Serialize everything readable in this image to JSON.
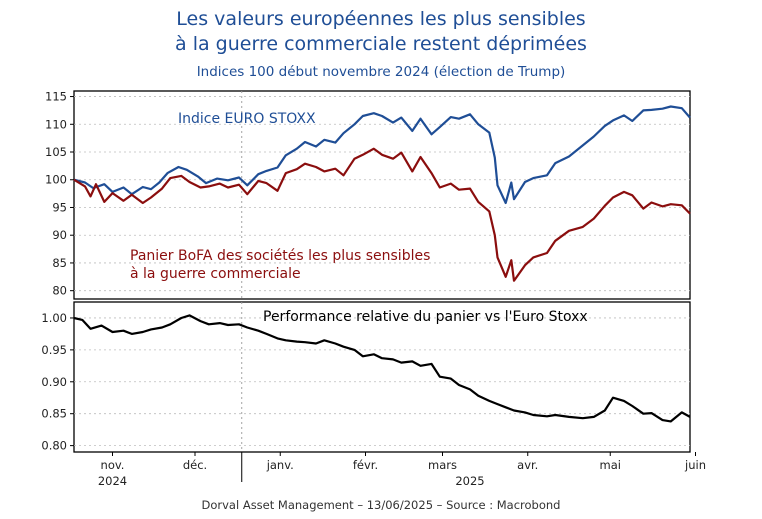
{
  "title_line1": "Les valeurs européennes les plus sensibles",
  "title_line2": "à la guerre commerciale restent déprimées",
  "subtitle": "Indices 100 début novembre 2024 (élection de Trump)",
  "footer": "Dorval Asset Management – 13/06/2025  –   Source : Macrobond",
  "colors": {
    "euro_stoxx": "#1f4e96",
    "basket": "#8b0e0e",
    "relative": "#000000",
    "title": "#1f4e96"
  },
  "chart_data": [
    {
      "type": "line",
      "ylim": [
        78.5,
        116
      ],
      "yticks": [
        80,
        85,
        90,
        95,
        100,
        105,
        110,
        115
      ],
      "x_domain": [
        "2024-11-01",
        "2025-06-13"
      ],
      "series": [
        {
          "name": "Indice EURO STOXX",
          "points": [
            [
              "2024-11-01",
              100
            ],
            [
              "2024-11-05",
              99.5
            ],
            [
              "2024-11-08",
              98.5
            ],
            [
              "2024-11-12",
              99.2
            ],
            [
              "2024-11-15",
              97.8
            ],
            [
              "2024-11-19",
              98.6
            ],
            [
              "2024-11-22",
              97.4
            ],
            [
              "2024-11-26",
              98.7
            ],
            [
              "2024-11-29",
              98.3
            ],
            [
              "2024-12-02",
              99.5
            ],
            [
              "2024-12-05",
              101.2
            ],
            [
              "2024-12-09",
              102.3
            ],
            [
              "2024-12-12",
              101.8
            ],
            [
              "2024-12-16",
              100.6
            ],
            [
              "2024-12-19",
              99.4
            ],
            [
              "2024-12-23",
              100.2
            ],
            [
              "2024-12-27",
              99.9
            ],
            [
              "2024-12-31",
              100.4
            ],
            [
              "2025-01-03",
              99.0
            ],
            [
              "2025-01-07",
              101.0
            ],
            [
              "2025-01-10",
              101.6
            ],
            [
              "2025-01-14",
              102.2
            ],
            [
              "2025-01-17",
              104.4
            ],
            [
              "2025-01-21",
              105.6
            ],
            [
              "2025-01-24",
              106.8
            ],
            [
              "2025-01-28",
              106.0
            ],
            [
              "2025-01-31",
              107.2
            ],
            [
              "2025-02-04",
              106.7
            ],
            [
              "2025-02-07",
              108.4
            ],
            [
              "2025-02-11",
              110.0
            ],
            [
              "2025-02-14",
              111.5
            ],
            [
              "2025-02-18",
              112.0
            ],
            [
              "2025-02-21",
              111.5
            ],
            [
              "2025-02-25",
              110.3
            ],
            [
              "2025-02-28",
              111.2
            ],
            [
              "2025-03-04",
              108.8
            ],
            [
              "2025-03-07",
              111.0
            ],
            [
              "2025-03-11",
              108.2
            ],
            [
              "2025-03-14",
              109.5
            ],
            [
              "2025-03-18",
              111.3
            ],
            [
              "2025-03-21",
              111.0
            ],
            [
              "2025-03-25",
              111.8
            ],
            [
              "2025-03-28",
              110.0
            ],
            [
              "2025-04-01",
              108.5
            ],
            [
              "2025-04-03",
              104.0
            ],
            [
              "2025-04-04",
              99.0
            ],
            [
              "2025-04-07",
              95.8
            ],
            [
              "2025-04-09",
              99.5
            ],
            [
              "2025-04-10",
              96.5
            ],
            [
              "2025-04-14",
              99.6
            ],
            [
              "2025-04-17",
              100.3
            ],
            [
              "2025-04-22",
              100.8
            ],
            [
              "2025-04-25",
              103.0
            ],
            [
              "2025-04-30",
              104.2
            ],
            [
              "2025-05-05",
              106.2
            ],
            [
              "2025-05-09",
              107.8
            ],
            [
              "2025-05-13",
              109.7
            ],
            [
              "2025-05-16",
              110.7
            ],
            [
              "2025-05-20",
              111.6
            ],
            [
              "2025-05-23",
              110.6
            ],
            [
              "2025-05-27",
              112.5
            ],
            [
              "2025-05-30",
              112.6
            ],
            [
              "2025-06-03",
              112.8
            ],
            [
              "2025-06-06",
              113.2
            ],
            [
              "2025-06-10",
              112.9
            ],
            [
              "2025-06-13",
              111.2
            ]
          ]
        },
        {
          "name": "Panier BoFA des sociétés les plus sensibles à la guerre commerciale",
          "points": [
            [
              "2024-11-01",
              100
            ],
            [
              "2024-11-05",
              98.8
            ],
            [
              "2024-11-07",
              97.0
            ],
            [
              "2024-11-09",
              99.2
            ],
            [
              "2024-11-12",
              96.0
            ],
            [
              "2024-11-15",
              97.6
            ],
            [
              "2024-11-19",
              96.2
            ],
            [
              "2024-11-22",
              97.3
            ],
            [
              "2024-11-26",
              95.8
            ],
            [
              "2024-11-29",
              96.8
            ],
            [
              "2024-12-03",
              98.4
            ],
            [
              "2024-12-06",
              100.3
            ],
            [
              "2024-12-10",
              100.7
            ],
            [
              "2024-12-13",
              99.6
            ],
            [
              "2024-12-17",
              98.6
            ],
            [
              "2024-12-20",
              98.8
            ],
            [
              "2024-12-24",
              99.3
            ],
            [
              "2024-12-27",
              98.6
            ],
            [
              "2024-12-31",
              99.1
            ],
            [
              "2025-01-03",
              97.4
            ],
            [
              "2025-01-07",
              99.8
            ],
            [
              "2025-01-10",
              99.4
            ],
            [
              "2025-01-14",
              98.0
            ],
            [
              "2025-01-17",
              101.2
            ],
            [
              "2025-01-21",
              101.9
            ],
            [
              "2025-01-24",
              102.9
            ],
            [
              "2025-01-28",
              102.3
            ],
            [
              "2025-01-31",
              101.5
            ],
            [
              "2025-02-04",
              102.0
            ],
            [
              "2025-02-07",
              100.8
            ],
            [
              "2025-02-11",
              103.8
            ],
            [
              "2025-02-14",
              104.5
            ],
            [
              "2025-02-18",
              105.6
            ],
            [
              "2025-02-21",
              104.5
            ],
            [
              "2025-02-25",
              103.8
            ],
            [
              "2025-02-28",
              104.9
            ],
            [
              "2025-03-04",
              101.5
            ],
            [
              "2025-03-07",
              104.1
            ],
            [
              "2025-03-11",
              101.2
            ],
            [
              "2025-03-14",
              98.6
            ],
            [
              "2025-03-18",
              99.3
            ],
            [
              "2025-03-21",
              98.2
            ],
            [
              "2025-03-25",
              98.4
            ],
            [
              "2025-03-28",
              96.0
            ],
            [
              "2025-04-01",
              94.3
            ],
            [
              "2025-04-03",
              90.0
            ],
            [
              "2025-04-04",
              86.0
            ],
            [
              "2025-04-07",
              82.5
            ],
            [
              "2025-04-09",
              85.5
            ],
            [
              "2025-04-10",
              81.8
            ],
            [
              "2025-04-14",
              84.6
            ],
            [
              "2025-04-17",
              86.0
            ],
            [
              "2025-04-22",
              86.8
            ],
            [
              "2025-04-25",
              89.0
            ],
            [
              "2025-04-30",
              90.8
            ],
            [
              "2025-05-05",
              91.5
            ],
            [
              "2025-05-09",
              93.0
            ],
            [
              "2025-05-13",
              95.3
            ],
            [
              "2025-05-16",
              96.8
            ],
            [
              "2025-05-20",
              97.8
            ],
            [
              "2025-05-23",
              97.2
            ],
            [
              "2025-05-27",
              94.8
            ],
            [
              "2025-05-30",
              95.9
            ],
            [
              "2025-06-03",
              95.2
            ],
            [
              "2025-06-06",
              95.6
            ],
            [
              "2025-06-10",
              95.4
            ],
            [
              "2025-06-13",
              93.9
            ]
          ]
        }
      ],
      "annotations": [
        {
          "text": "Indice EURO STOXX",
          "series": 0
        },
        {
          "text": "Panier BoFA des sociétés les plus sensibles",
          "series": 1
        },
        {
          "text": "à la guerre commerciale",
          "series": 1
        }
      ]
    },
    {
      "type": "line",
      "ylim": [
        0.79,
        1.025
      ],
      "yticks": [
        0.8,
        0.85,
        0.9,
        0.95,
        1.0
      ],
      "ytick_labels": [
        "0.80",
        "0.85",
        "0.90",
        "0.95",
        "1.00"
      ],
      "x_domain": [
        "2024-11-01",
        "2025-06-13"
      ],
      "series": [
        {
          "name": "Performance relative du panier vs l'Euro Stoxx",
          "points": [
            [
              "2024-11-01",
              1.0
            ],
            [
              "2024-11-04",
              0.997
            ],
            [
              "2024-11-07",
              0.983
            ],
            [
              "2024-11-11",
              0.988
            ],
            [
              "2024-11-15",
              0.978
            ],
            [
              "2024-11-19",
              0.98
            ],
            [
              "2024-11-22",
              0.975
            ],
            [
              "2024-11-26",
              0.978
            ],
            [
              "2024-11-29",
              0.982
            ],
            [
              "2024-12-03",
              0.985
            ],
            [
              "2024-12-06",
              0.99
            ],
            [
              "2024-12-10",
              1.0
            ],
            [
              "2024-12-13",
              1.004
            ],
            [
              "2024-12-17",
              0.995
            ],
            [
              "2024-12-20",
              0.99
            ],
            [
              "2024-12-24",
              0.992
            ],
            [
              "2024-12-27",
              0.989
            ],
            [
              "2024-12-31",
              0.99
            ],
            [
              "2025-01-03",
              0.985
            ],
            [
              "2025-01-07",
              0.98
            ],
            [
              "2025-01-10",
              0.975
            ],
            [
              "2025-01-14",
              0.968
            ],
            [
              "2025-01-17",
              0.965
            ],
            [
              "2025-01-21",
              0.963
            ],
            [
              "2025-01-24",
              0.962
            ],
            [
              "2025-01-28",
              0.96
            ],
            [
              "2025-01-31",
              0.965
            ],
            [
              "2025-02-04",
              0.96
            ],
            [
              "2025-02-07",
              0.955
            ],
            [
              "2025-02-11",
              0.95
            ],
            [
              "2025-02-14",
              0.94
            ],
            [
              "2025-02-18",
              0.943
            ],
            [
              "2025-02-21",
              0.937
            ],
            [
              "2025-02-25",
              0.935
            ],
            [
              "2025-02-28",
              0.93
            ],
            [
              "2025-03-04",
              0.932
            ],
            [
              "2025-03-07",
              0.925
            ],
            [
              "2025-03-11",
              0.928
            ],
            [
              "2025-03-14",
              0.908
            ],
            [
              "2025-03-18",
              0.905
            ],
            [
              "2025-03-21",
              0.895
            ],
            [
              "2025-03-25",
              0.888
            ],
            [
              "2025-03-28",
              0.878
            ],
            [
              "2025-04-01",
              0.87
            ],
            [
              "2025-04-04",
              0.865
            ],
            [
              "2025-04-07",
              0.86
            ],
            [
              "2025-04-10",
              0.855
            ],
            [
              "2025-04-14",
              0.852
            ],
            [
              "2025-04-17",
              0.848
            ],
            [
              "2025-04-22",
              0.846
            ],
            [
              "2025-04-25",
              0.848
            ],
            [
              "2025-04-30",
              0.845
            ],
            [
              "2025-05-05",
              0.843
            ],
            [
              "2025-05-09",
              0.845
            ],
            [
              "2025-05-13",
              0.855
            ],
            [
              "2025-05-16",
              0.875
            ],
            [
              "2025-05-20",
              0.87
            ],
            [
              "2025-05-23",
              0.862
            ],
            [
              "2025-05-27",
              0.85
            ],
            [
              "2025-05-30",
              0.851
            ],
            [
              "2025-06-03",
              0.84
            ],
            [
              "2025-06-06",
              0.838
            ],
            [
              "2025-06-10",
              0.852
            ],
            [
              "2025-06-13",
              0.845
            ]
          ]
        }
      ],
      "annotations": [
        {
          "text": "Performance relative du panier vs l'Euro Stoxx",
          "series": 0
        }
      ]
    }
  ],
  "x_axis": {
    "ticks": [
      {
        "date": "2024-11-15",
        "label": "nov."
      },
      {
        "date": "2024-12-15",
        "label": "déc."
      },
      {
        "date": "2025-01-15",
        "label": "janv."
      },
      {
        "date": "2025-02-15",
        "label": "févr."
      },
      {
        "date": "2025-03-15",
        "label": "mars"
      },
      {
        "date": "2025-04-15",
        "label": "avr."
      },
      {
        "date": "2025-05-15",
        "label": "mai"
      },
      {
        "date": "2025-06-15",
        "label": "juin"
      }
    ],
    "year_labels": [
      {
        "date": "2024-11-15",
        "label": "2024"
      },
      {
        "date": "2025-03-25",
        "label": "2025"
      }
    ],
    "year_boundary": "2025-01-01"
  }
}
